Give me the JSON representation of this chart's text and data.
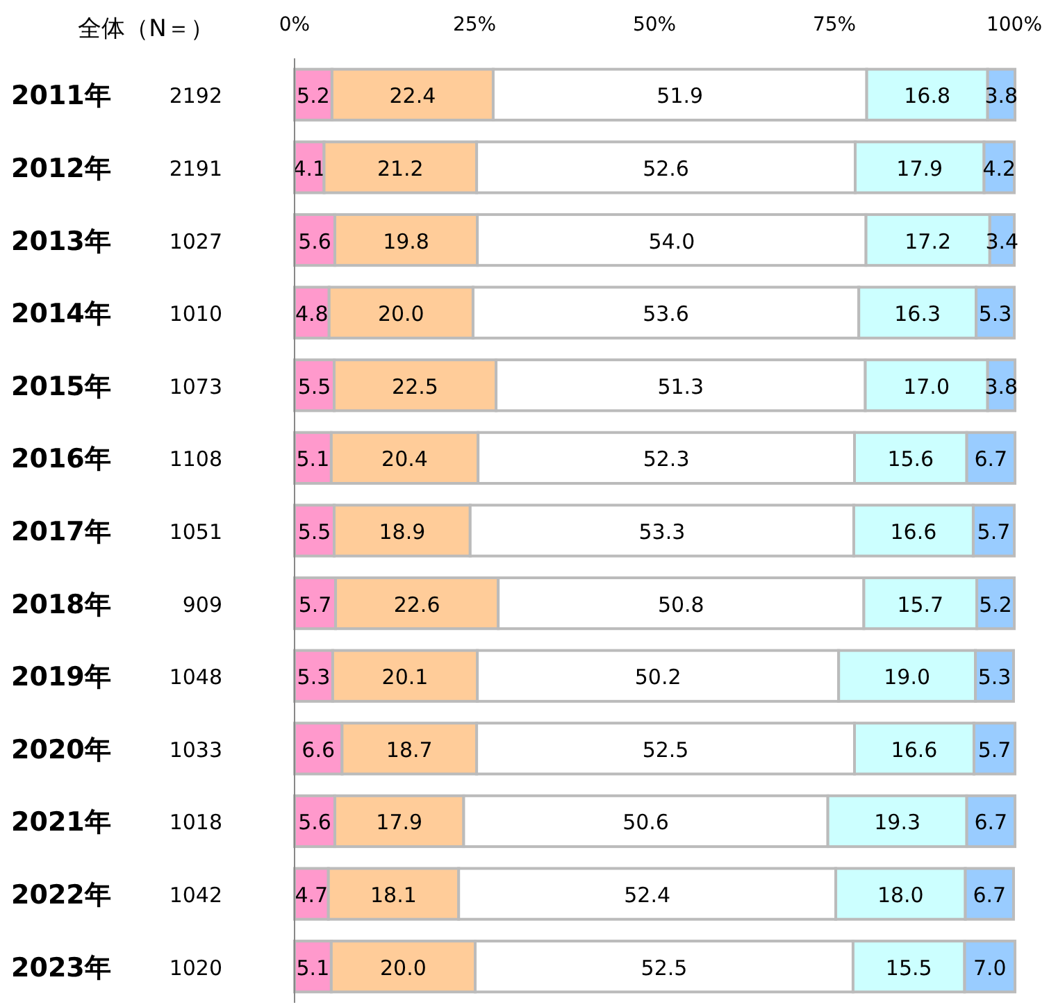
{
  "chart_data": {
    "type": "bar",
    "orientation": "horizontal",
    "stacked": true,
    "ylabel": "全体（N＝）",
    "categories": [
      "2011年",
      "2012年",
      "2013年",
      "2014年",
      "2015年",
      "2016年",
      "2017年",
      "2018年",
      "2019年",
      "2020年",
      "2021年",
      "2022年",
      "2023年"
    ],
    "series": [
      {
        "color": "#ff99cc",
        "values": [
          5.2,
          4.1,
          5.6,
          4.8,
          5.5,
          5.1,
          5.5,
          5.7,
          5.3,
          6.6,
          5.6,
          4.7,
          5.1
        ],
        "value_labels": [
          "5.2",
          "4.1",
          "5.6",
          "4.8",
          "5.5",
          "5.1",
          "5.5",
          "5.7",
          "5.3",
          "6.6",
          "5.6",
          "4.7",
          "5.1"
        ]
      },
      {
        "color": "#ffcc99",
        "values": [
          22.4,
          21.2,
          19.8,
          20.0,
          22.5,
          20.4,
          18.9,
          22.6,
          20.1,
          18.7,
          17.9,
          18.1,
          20.0
        ],
        "value_labels": [
          "22.4",
          "21.2",
          "19.8",
          "20.0",
          "22.5",
          "20.4",
          "18.9",
          "22.6",
          "20.1",
          "18.7",
          "17.9",
          "18.1",
          "20.0"
        ]
      },
      {
        "color": "#ffffff",
        "values": [
          51.9,
          52.6,
          54.0,
          53.6,
          51.3,
          52.3,
          53.3,
          50.8,
          50.2,
          52.5,
          50.6,
          52.4,
          52.5
        ],
        "value_labels": [
          "51.9",
          "52.6",
          "54.0",
          "53.6",
          "51.3",
          "52.3",
          "53.3",
          "50.8",
          "50.2",
          "52.5",
          "50.6",
          "52.4",
          "52.5"
        ]
      },
      {
        "color": "#ccffff",
        "values": [
          16.8,
          17.9,
          17.2,
          16.3,
          17.0,
          15.6,
          16.6,
          15.7,
          19.0,
          16.6,
          19.3,
          18.0,
          15.5
        ],
        "value_labels": [
          "16.8",
          "17.9",
          "17.2",
          "16.3",
          "17.0",
          "15.6",
          "16.6",
          "15.7",
          "19.0",
          "16.6",
          "19.3",
          "18.0",
          "15.5"
        ]
      },
      {
        "color": "#99ccff",
        "values": [
          3.8,
          4.2,
          3.4,
          5.3,
          3.8,
          6.7,
          5.7,
          5.2,
          5.3,
          5.7,
          6.7,
          6.7,
          7.0
        ],
        "value_labels": [
          "3.8",
          "4.2",
          "3.4",
          "5.3",
          "3.8",
          "6.7",
          "5.7",
          "5.2",
          "5.3",
          "5.7",
          "6.7",
          "6.7",
          "7.0"
        ]
      }
    ],
    "annotations": [
      "2192",
      "2191",
      "1027",
      "1010",
      "1073",
      "1108",
      "1051",
      "909",
      "1048",
      "1033",
      "1018",
      "1042",
      "1020"
    ],
    "xlim": [
      0,
      100
    ],
    "xticks": [
      {
        "value": 0,
        "label": "0%"
      },
      {
        "value": 25,
        "label": "25%"
      },
      {
        "value": 50,
        "label": "50%"
      },
      {
        "value": 75,
        "label": "75%"
      },
      {
        "value": 100,
        "label": "100%"
      }
    ]
  }
}
